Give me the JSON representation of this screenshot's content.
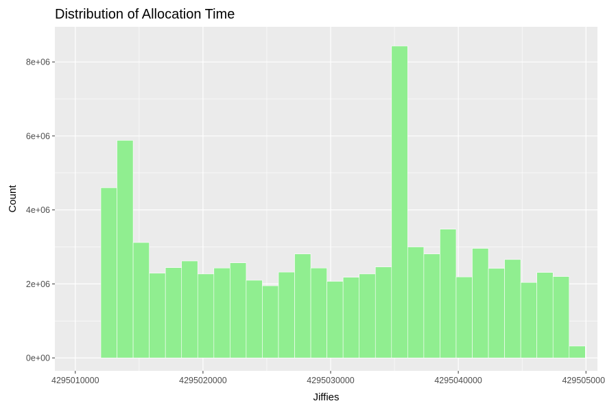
{
  "chart_data": {
    "type": "bar",
    "title": "Distribution of Allocation Time",
    "xlabel": "Jiffies",
    "ylabel": "Count",
    "xlim": [
      4295008400,
      4295050900
    ],
    "ylim": [
      -350000,
      8950000
    ],
    "x_ticks": [
      {
        "value": 4295010000,
        "label": "4295010000"
      },
      {
        "value": 4295020000,
        "label": "4295020000"
      },
      {
        "value": 4295030000,
        "label": "4295030000"
      },
      {
        "value": 4295040000,
        "label": "4295040000"
      },
      {
        "value": 4295050000,
        "label": "4295050000"
      }
    ],
    "y_ticks": [
      {
        "value": 0,
        "label": "0e+00"
      },
      {
        "value": 2000000,
        "label": "2e+06"
      },
      {
        "value": 4000000,
        "label": "4e+06"
      },
      {
        "value": 6000000,
        "label": "6e+06"
      },
      {
        "value": 8000000,
        "label": "8e+06"
      }
    ],
    "bin_start": 4295012000,
    "bin_width": 1265,
    "values": [
      4600000,
      5880000,
      3120000,
      2290000,
      2440000,
      2620000,
      2270000,
      2430000,
      2570000,
      2100000,
      1950000,
      2320000,
      2810000,
      2430000,
      2070000,
      2180000,
      2270000,
      2460000,
      8430000,
      3000000,
      2810000,
      3480000,
      2190000,
      2960000,
      2420000,
      2660000,
      2040000,
      2310000,
      2200000,
      320000
    ],
    "grid": true,
    "legend": "none",
    "colors": {
      "bar_fill": "#90ee90",
      "bar_stroke": "#ffffff",
      "panel_background": "#ebebeb",
      "grid_major": "#ffffff"
    }
  }
}
